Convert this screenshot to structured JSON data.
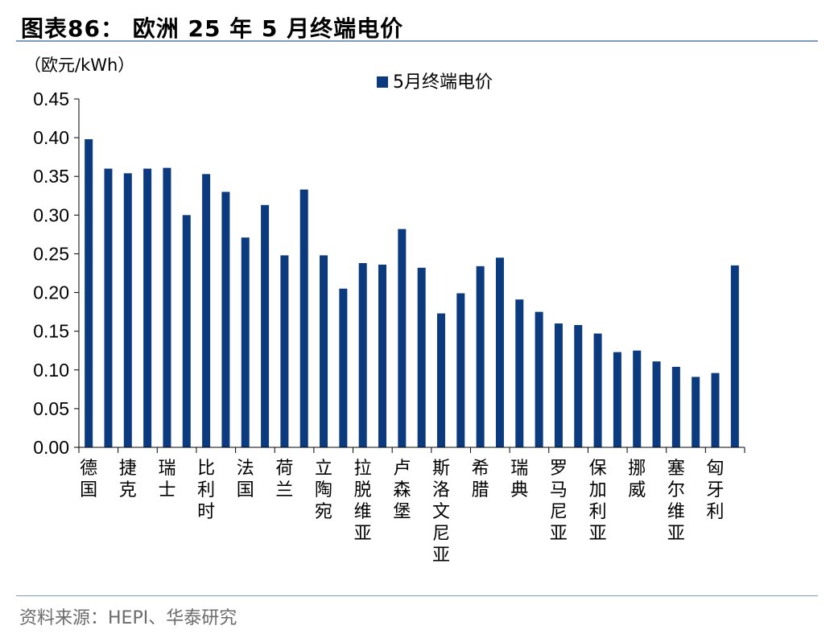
{
  "figure": {
    "title": "图表86：  欧洲 25 年 5 月终端电价",
    "source": "资料来源：HEPI、华泰研究"
  },
  "chart_data": {
    "type": "bar",
    "unit_label": "（欧元/kWh）",
    "legend": {
      "placement": "top",
      "entries": [
        "5月终端电价"
      ]
    },
    "ylim": [
      0,
      0.45
    ],
    "yticks": [
      "0.00",
      "0.05",
      "0.10",
      "0.15",
      "0.20",
      "0.25",
      "0.30",
      "0.35",
      "0.40",
      "0.45"
    ],
    "grid": false,
    "categories": [
      "德国",
      "",
      "捷克",
      "",
      "瑞士",
      "",
      "比利时",
      "",
      "法国",
      "",
      "荷兰",
      "",
      "立陶宛",
      "",
      "拉脱维亚",
      "",
      "卢森堡",
      "",
      "斯洛文尼亚",
      "",
      "希腊",
      "",
      "瑞典",
      "",
      "罗马尼亚",
      "",
      "保加利亚",
      "",
      "挪威",
      "",
      "塞尔维亚",
      "",
      "匈牙利",
      ""
    ],
    "series": [
      {
        "name": "5月终端电价",
        "color": "#0b3a7e",
        "values": [
          0.398,
          0.36,
          0.354,
          0.36,
          0.361,
          0.3,
          0.353,
          0.33,
          0.271,
          0.313,
          0.248,
          0.333,
          0.248,
          0.205,
          0.238,
          0.236,
          0.282,
          0.232,
          0.173,
          0.199,
          0.234,
          0.245,
          0.191,
          0.175,
          0.16,
          0.158,
          0.147,
          0.123,
          0.125,
          0.111,
          0.104,
          0.091,
          0.096,
          0.235
        ]
      }
    ]
  }
}
